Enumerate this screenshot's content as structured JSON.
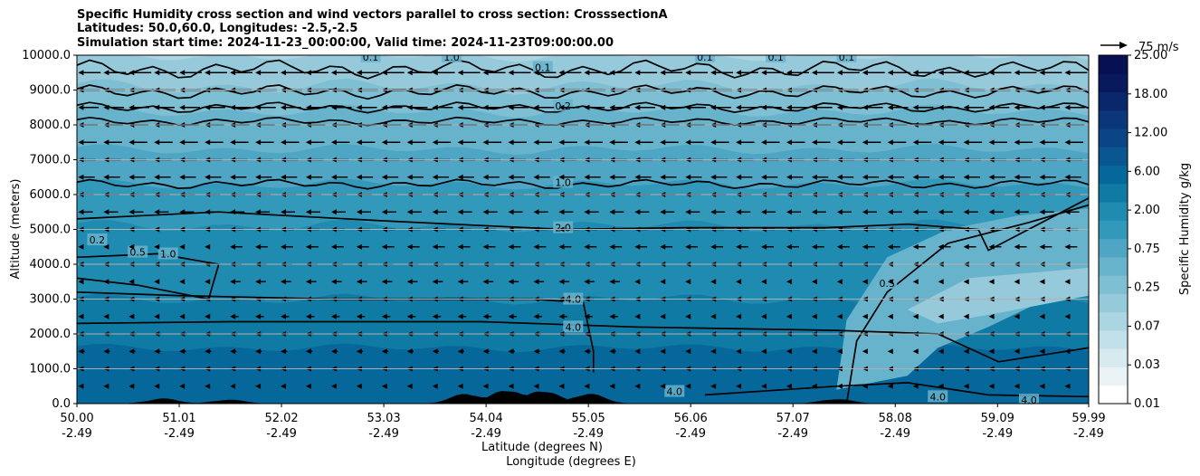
{
  "title_lines": [
    "Specific Humidity cross section and wind vectors parallel to cross section: CrosssectionA",
    "Latitudes: 50.0,60.0, Longitudes: -2.5,-2.5",
    "Simulation start time: 2024-11-23_00:00:00, Valid time: 2024-11-23T09:00:00.00"
  ],
  "chart_data": {
    "type": "contour",
    "ylabel": "Altitude (meters)",
    "xlabel_lines": [
      "Latitude (degrees N)",
      "Longitude (degrees E)"
    ],
    "ylim": [
      0,
      10000
    ],
    "y_ticks": [
      "0.0",
      "1000.0",
      "2000.0",
      "3000.0",
      "4000.0",
      "5000.0",
      "6000.0",
      "7000.0",
      "8000.0",
      "9000.0",
      "10000.0"
    ],
    "x_ticks": [
      {
        "lat": "50.00",
        "lon": "-2.49"
      },
      {
        "lat": "51.01",
        "lon": "-2.49"
      },
      {
        "lat": "52.02",
        "lon": "-2.49"
      },
      {
        "lat": "53.03",
        "lon": "-2.49"
      },
      {
        "lat": "54.04",
        "lon": "-2.49"
      },
      {
        "lat": "55.05",
        "lon": "-2.49"
      },
      {
        "lat": "56.06",
        "lon": "-2.49"
      },
      {
        "lat": "57.07",
        "lon": "-2.49"
      },
      {
        "lat": "58.08",
        "lon": "-2.49"
      },
      {
        "lat": "59.09",
        "lon": "-2.49"
      },
      {
        "lat": "59.99",
        "lon": "-2.49"
      }
    ],
    "grid": "horizontal",
    "colorbar": {
      "label": "Specific Humidity g/kg",
      "tick_labels": [
        "0.01",
        "0.03",
        "0.07",
        "0.25",
        "0.75",
        "2.00",
        "6.00",
        "12.00",
        "18.00",
        "25.00"
      ],
      "levels": [
        0.01,
        0.02,
        0.03,
        0.05,
        0.07,
        0.1,
        0.25,
        0.5,
        0.75,
        1.0,
        2.0,
        4.0,
        6.0,
        9.0,
        12.0,
        15.0,
        18.0,
        21.0,
        25.0
      ],
      "colors": [
        "#ffffff",
        "#e9f3f6",
        "#d6eaf0",
        "#c2e0ea",
        "#acd5e2",
        "#96cadb",
        "#7fbfd4",
        "#67b3cc",
        "#4fa6c4",
        "#3399bb",
        "#1f8bb1",
        "#0f7aa3",
        "#06689a",
        "#0a5690",
        "#0b4585",
        "#0b367a",
        "#0a276c",
        "#08195e",
        "#061052"
      ]
    },
    "quiver_key_label": "75 m/s",
    "quiver_key_speed": 75,
    "wind_direction": "toward lower latitude (south) along section",
    "contour_labels": [
      {
        "text": "0.1",
        "lat": 54.6,
        "alt": 9650
      },
      {
        "text": "0.2",
        "lat": 54.8,
        "alt": 8550
      },
      {
        "text": "1.0",
        "lat": 54.8,
        "alt": 6350
      },
      {
        "text": "2.0",
        "lat": 54.8,
        "alt": 5050
      },
      {
        "text": "4.0",
        "lat": 54.9,
        "alt": 3000
      },
      {
        "text": "4.0",
        "lat": 54.9,
        "alt": 2200
      },
      {
        "text": "0.5",
        "lat": 58.0,
        "alt": 3450
      },
      {
        "text": "0.2",
        "lat": 50.2,
        "alt": 4700
      },
      {
        "text": "0.5",
        "lat": 50.6,
        "alt": 4350
      },
      {
        "text": "1.0",
        "lat": 50.9,
        "alt": 4300
      },
      {
        "text": "1.0",
        "lat": 53.7,
        "alt": 9950
      },
      {
        "text": "0.1",
        "lat": 52.9,
        "alt": 9950
      },
      {
        "text": "0.1",
        "lat": 57.6,
        "alt": 9950
      },
      {
        "text": "0.1",
        "lat": 56.9,
        "alt": 9950
      },
      {
        "text": "0.1",
        "lat": 56.2,
        "alt": 9950
      },
      {
        "text": "4.0",
        "lat": 55.9,
        "alt": 350
      },
      {
        "text": "4.0",
        "lat": 58.5,
        "alt": 200
      },
      {
        "text": "4.0",
        "lat": 59.4,
        "alt": 100
      }
    ],
    "terrain_peaks": [
      {
        "lat": 50.85,
        "alt": 150
      },
      {
        "lat": 51.5,
        "alt": 120
      },
      {
        "lat": 53.85,
        "alt": 300
      },
      {
        "lat": 54.25,
        "alt": 420
      },
      {
        "lat": 54.6,
        "alt": 400
      },
      {
        "lat": 55.05,
        "alt": 300
      },
      {
        "lat": 57.5,
        "alt": 140
      }
    ]
  }
}
